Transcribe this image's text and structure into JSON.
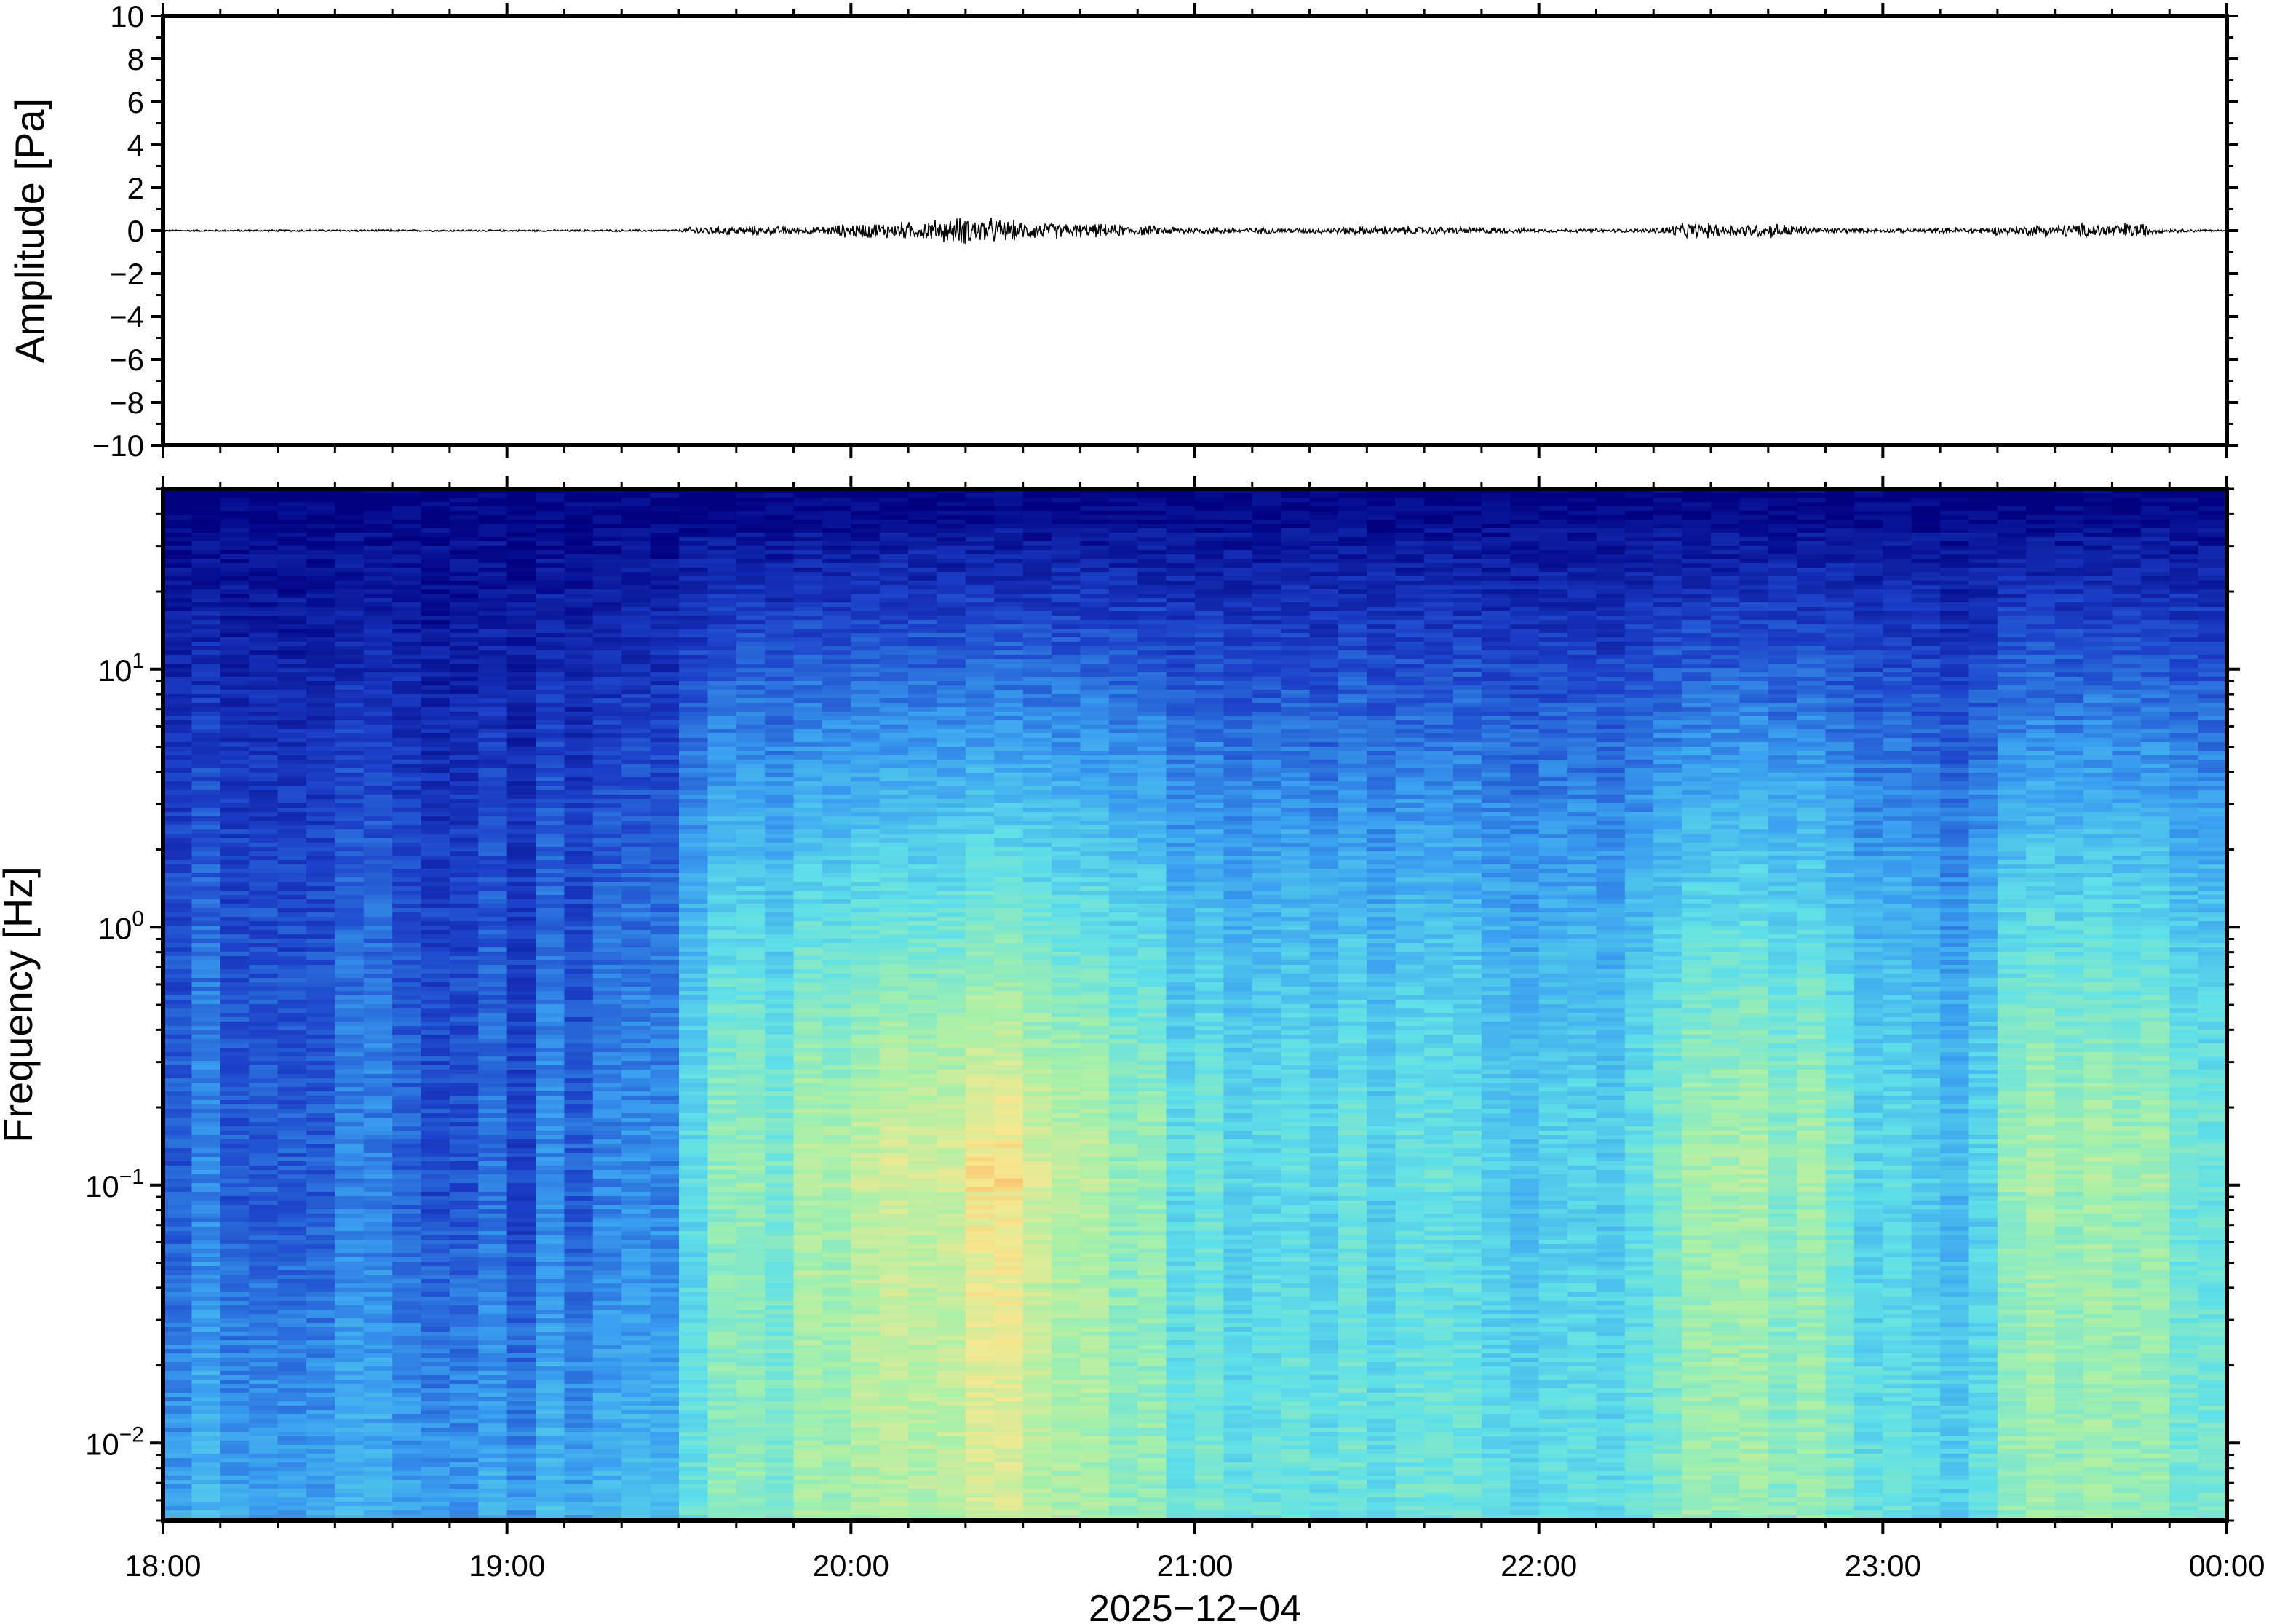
{
  "chart_data": [
    {
      "type": "line",
      "panel": "waveform",
      "ylabel": "Amplitude [Pa]",
      "ylim": [
        -10,
        10
      ],
      "yticks": [
        "10",
        "8",
        "6",
        "4",
        "2",
        "0",
        "−2",
        "−4",
        "−6",
        "−8",
        "−10"
      ],
      "ytick_values": [
        10,
        8,
        6,
        4,
        2,
        0,
        -2,
        -4,
        -6,
        -8,
        -10
      ],
      "x_range_hours": [
        18,
        24
      ],
      "series_color": "#000000",
      "envelope": {
        "hours": [
          18.0,
          18.5,
          19.0,
          19.5,
          19.55,
          19.7,
          19.9,
          20.0,
          20.2,
          20.35,
          20.5,
          20.8,
          21.0,
          21.3,
          21.5,
          21.8,
          22.0,
          22.3,
          22.45,
          22.55,
          22.7,
          22.8,
          23.0,
          23.3,
          23.5,
          23.75,
          23.8,
          24.0
        ],
        "amplitude_pa": [
          0.05,
          0.06,
          0.05,
          0.06,
          0.25,
          0.25,
          0.2,
          0.4,
          0.5,
          0.8,
          0.5,
          0.3,
          0.2,
          0.15,
          0.25,
          0.2,
          0.1,
          0.1,
          0.45,
          0.35,
          0.4,
          0.2,
          0.1,
          0.2,
          0.35,
          0.45,
          0.12,
          0.05
        ]
      }
    },
    {
      "type": "heatmap",
      "panel": "spectrogram",
      "ylabel": "Frequency [Hz]",
      "xlabel": "2025−12−04",
      "y_scale": "log",
      "ylim_hz": [
        0.005,
        50
      ],
      "yticks": [
        {
          "base": "10",
          "exp": "−2",
          "value": 0.01
        },
        {
          "base": "10",
          "exp": "−1",
          "value": 0.1
        },
        {
          "base": "10",
          "exp": "0",
          "value": 1
        },
        {
          "base": "10",
          "exp": "1",
          "value": 10
        }
      ],
      "xticks": [
        "18:00",
        "19:00",
        "20:00",
        "21:00",
        "22:00",
        "23:00",
        "00:00"
      ],
      "xtick_hours": [
        18,
        19,
        20,
        21,
        22,
        23,
        24
      ],
      "colormap": [
        "#000080",
        "#1c40c8",
        "#3aa0f0",
        "#5fe0e8",
        "#a8f0a8",
        "#f6e890",
        "#f8a050"
      ],
      "activity_profile": {
        "hours": [
          18.0,
          18.3,
          18.6,
          19.0,
          19.4,
          19.5,
          19.55,
          19.8,
          20.0,
          20.3,
          20.45,
          20.6,
          20.8,
          21.0,
          21.2,
          21.4,
          21.6,
          21.8,
          22.0,
          22.2,
          22.35,
          22.5,
          22.6,
          22.75,
          22.9,
          23.1,
          23.25,
          23.4,
          23.6,
          23.75,
          23.9,
          24.0
        ],
        "intensity": [
          0.25,
          0.2,
          0.22,
          0.22,
          0.25,
          0.32,
          0.55,
          0.58,
          0.68,
          0.78,
          0.8,
          0.66,
          0.6,
          0.52,
          0.48,
          0.5,
          0.45,
          0.48,
          0.4,
          0.45,
          0.48,
          0.72,
          0.6,
          0.66,
          0.5,
          0.48,
          0.4,
          0.6,
          0.62,
          0.7,
          0.5,
          0.45
        ]
      }
    }
  ]
}
